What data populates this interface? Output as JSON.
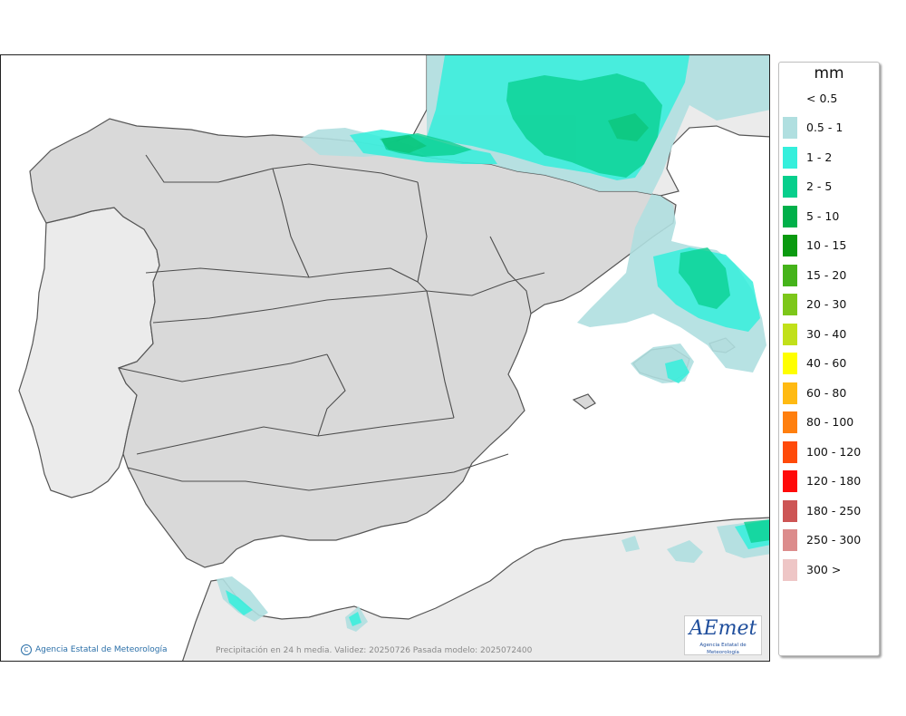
{
  "map": {
    "credit": "Agencia Estatal de Meteorología",
    "footnote": "Precipitación en 24 h media. Validez: 20250726 Pasada modelo: 2025072400",
    "logo_text": "AEmet",
    "logo_subtext": "Agencia Estatal de Meteorología",
    "colors": {
      "sea": "#ffffff",
      "land": "#d9d9d9",
      "foreign_land": "#ebebeb",
      "border": "#555555"
    }
  },
  "legend": {
    "title": "mm",
    "first_label": "< 0.5",
    "items": [
      {
        "label": "0.5 - 1",
        "color": "#b0dfe0"
      },
      {
        "label": "1 - 2",
        "color": "#35efdc"
      },
      {
        "label": "2 - 5",
        "color": "#06cf8c"
      },
      {
        "label": "5 - 10",
        "color": "#00b04a"
      },
      {
        "label": "10 - 15",
        "color": "#0a9a10"
      },
      {
        "label": "15 - 20",
        "color": "#45b31a"
      },
      {
        "label": "20 - 30",
        "color": "#7dc71a"
      },
      {
        "label": "30 - 40",
        "color": "#c1e01a"
      },
      {
        "label": "40 - 60",
        "color": "#ffff00"
      },
      {
        "label": "60 - 80",
        "color": "#ffba12"
      },
      {
        "label": "80 - 100",
        "color": "#ff7f0e"
      },
      {
        "label": "100 - 120",
        "color": "#ff4a0a"
      },
      {
        "label": "120 - 180",
        "color": "#ff0a0a"
      },
      {
        "label": "180 - 250",
        "color": "#cd5555"
      },
      {
        "label": "250 - 300",
        "color": "#dc8c8c"
      },
      {
        "label": "300 >",
        "color": "#eec6c6"
      }
    ]
  }
}
